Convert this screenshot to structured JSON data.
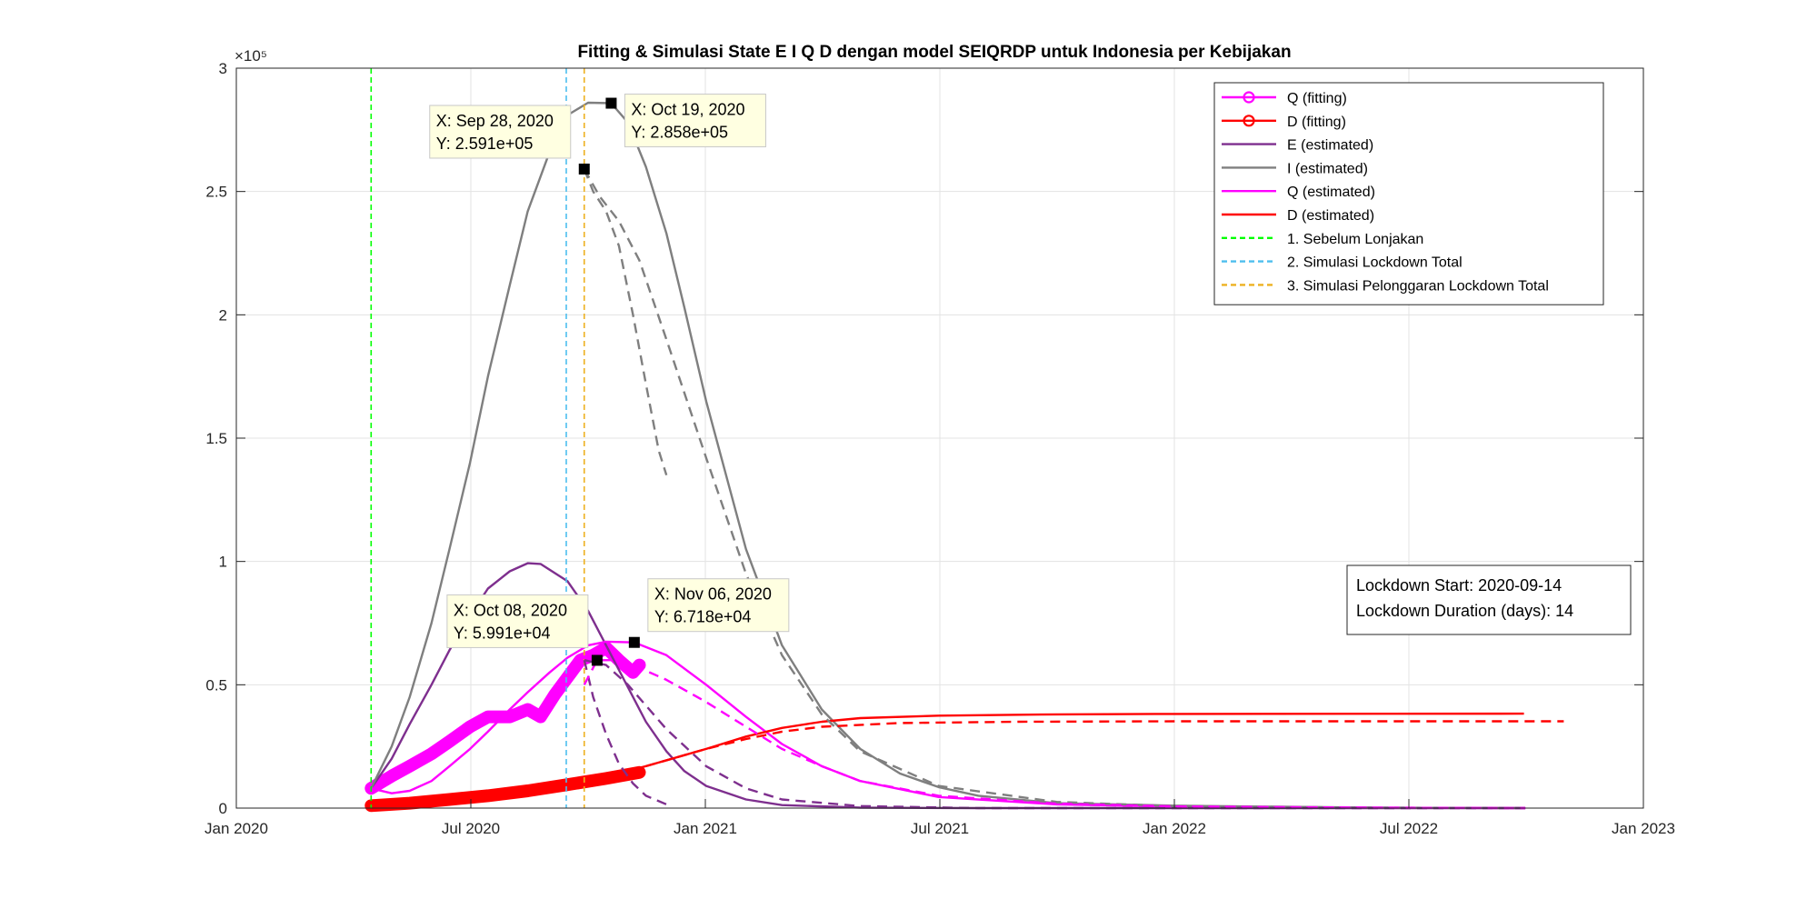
{
  "chart_data": {
    "type": "line",
    "title": "Fitting & Simulasi State  E I Q D dengan model SEIQRDP untuk Indonesia per Kebijakan",
    "y_exponent": "×10⁵",
    "x_ticks": [
      "Jan 2020",
      "Jul 2020",
      "Jan 2021",
      "Jul 2021",
      "Jan 2022",
      "Jul 2022",
      "Jan 2023"
    ],
    "x_range": [
      "2020-01-01",
      "2023-01-01"
    ],
    "y_ticks": [
      "0",
      "0.5",
      "1",
      "1.5",
      "2",
      "2.5",
      "3"
    ],
    "y_range": [
      0,
      3
    ],
    "grid": true,
    "legend_position": "top-right",
    "series": [
      {
        "name": "Q (fitting)",
        "color": "#FF00FF",
        "style": "marker-o",
        "points": [
          [
            "2020-04-15",
            0.08
          ],
          [
            "2020-05-01",
            0.13
          ],
          [
            "2020-05-15",
            0.17
          ],
          [
            "2020-06-01",
            0.22
          ],
          [
            "2020-06-15",
            0.27
          ],
          [
            "2020-07-01",
            0.33
          ],
          [
            "2020-07-15",
            0.37
          ],
          [
            "2020-08-01",
            0.37
          ],
          [
            "2020-08-15",
            0.4
          ],
          [
            "2020-08-25",
            0.37
          ],
          [
            "2020-09-05",
            0.46
          ],
          [
            "2020-09-15",
            0.53
          ],
          [
            "2020-09-25",
            0.6
          ],
          [
            "2020-10-05",
            0.62
          ],
          [
            "2020-10-15",
            0.65
          ],
          [
            "2020-10-25",
            0.6
          ],
          [
            "2020-11-05",
            0.55
          ],
          [
            "2020-11-10",
            0.58
          ]
        ]
      },
      {
        "name": "D (fitting)",
        "color": "#FF0000",
        "style": "marker-o",
        "points": [
          [
            "2020-04-15",
            0.01
          ],
          [
            "2020-05-15",
            0.02
          ],
          [
            "2020-06-15",
            0.035
          ],
          [
            "2020-07-15",
            0.05
          ],
          [
            "2020-08-15",
            0.07
          ],
          [
            "2020-09-15",
            0.095
          ],
          [
            "2020-10-15",
            0.12
          ],
          [
            "2020-11-10",
            0.145
          ]
        ]
      },
      {
        "name": "E (estimated)",
        "color": "#7E2F8E",
        "style": "solid",
        "points": [
          [
            "2020-04-15",
            0.08
          ],
          [
            "2020-05-01",
            0.2
          ],
          [
            "2020-05-15",
            0.34
          ],
          [
            "2020-06-01",
            0.5
          ],
          [
            "2020-06-15",
            0.64
          ],
          [
            "2020-07-01",
            0.78
          ],
          [
            "2020-07-15",
            0.89
          ],
          [
            "2020-08-01",
            0.96
          ],
          [
            "2020-08-15",
            0.993
          ],
          [
            "2020-08-25",
            0.99
          ],
          [
            "2020-09-15",
            0.92
          ],
          [
            "2020-10-01",
            0.8
          ],
          [
            "2020-10-15",
            0.66
          ],
          [
            "2020-11-01",
            0.49
          ],
          [
            "2020-11-15",
            0.35
          ],
          [
            "2020-12-01",
            0.23
          ],
          [
            "2020-12-15",
            0.15
          ],
          [
            "2021-01-01",
            0.09
          ],
          [
            "2021-02-01",
            0.035
          ],
          [
            "2021-03-01",
            0.012
          ],
          [
            "2021-05-01",
            0.002
          ],
          [
            "2021-08-01",
            0.0
          ],
          [
            "2022-10-01",
            0.0
          ]
        ]
      },
      {
        "name": "I (estimated)",
        "color": "#7F7F7F",
        "style": "solid",
        "points": [
          [
            "2020-04-15",
            0.08
          ],
          [
            "2020-05-01",
            0.25
          ],
          [
            "2020-05-15",
            0.45
          ],
          [
            "2020-06-01",
            0.75
          ],
          [
            "2020-06-15",
            1.05
          ],
          [
            "2020-07-01",
            1.4
          ],
          [
            "2020-07-15",
            1.75
          ],
          [
            "2020-08-01",
            2.12
          ],
          [
            "2020-08-15",
            2.42
          ],
          [
            "2020-09-01",
            2.66
          ],
          [
            "2020-09-15",
            2.81
          ],
          [
            "2020-10-01",
            2.86
          ],
          [
            "2020-10-19",
            2.858
          ],
          [
            "2020-11-01",
            2.78
          ],
          [
            "2020-11-15",
            2.6
          ],
          [
            "2020-12-01",
            2.33
          ],
          [
            "2020-12-15",
            2.03
          ],
          [
            "2021-01-01",
            1.65
          ],
          [
            "2021-02-01",
            1.05
          ],
          [
            "2021-03-01",
            0.66
          ],
          [
            "2021-04-01",
            0.4
          ],
          [
            "2021-05-01",
            0.24
          ],
          [
            "2021-06-01",
            0.14
          ],
          [
            "2021-07-01",
            0.085
          ],
          [
            "2021-08-01",
            0.05
          ],
          [
            "2021-10-01",
            0.02
          ],
          [
            "2022-01-01",
            0.01
          ],
          [
            "2022-06-01",
            0.002
          ],
          [
            "2022-10-01",
            0.0
          ]
        ]
      },
      {
        "name": "Q (estimated)",
        "color": "#FF00FF",
        "style": "solid",
        "points": [
          [
            "2020-04-15",
            0.08
          ],
          [
            "2020-05-01",
            0.06
          ],
          [
            "2020-05-15",
            0.07
          ],
          [
            "2020-06-01",
            0.11
          ],
          [
            "2020-06-15",
            0.17
          ],
          [
            "2020-07-01",
            0.24
          ],
          [
            "2020-07-15",
            0.31
          ],
          [
            "2020-08-01",
            0.4
          ],
          [
            "2020-08-15",
            0.47
          ],
          [
            "2020-09-01",
            0.55
          ],
          [
            "2020-09-15",
            0.61
          ],
          [
            "2020-10-01",
            0.66
          ],
          [
            "2020-10-15",
            0.675
          ],
          [
            "2020-11-06",
            0.6718
          ],
          [
            "2020-12-01",
            0.62
          ],
          [
            "2021-01-01",
            0.5
          ],
          [
            "2021-02-01",
            0.37
          ],
          [
            "2021-03-01",
            0.26
          ],
          [
            "2021-04-01",
            0.17
          ],
          [
            "2021-05-01",
            0.11
          ],
          [
            "2021-07-01",
            0.045
          ],
          [
            "2021-10-01",
            0.015
          ],
          [
            "2022-01-01",
            0.006
          ],
          [
            "2022-06-01",
            0.002
          ],
          [
            "2022-10-01",
            0.0
          ]
        ]
      },
      {
        "name": "D (estimated)",
        "color": "#FF0000",
        "style": "solid",
        "points": [
          [
            "2020-04-15",
            0.01
          ],
          [
            "2020-06-01",
            0.025
          ],
          [
            "2020-08-01",
            0.06
          ],
          [
            "2020-10-01",
            0.11
          ],
          [
            "2020-11-15",
            0.17
          ],
          [
            "2021-01-01",
            0.24
          ],
          [
            "2021-02-01",
            0.29
          ],
          [
            "2021-03-01",
            0.325
          ],
          [
            "2021-04-01",
            0.35
          ],
          [
            "2021-05-01",
            0.365
          ],
          [
            "2021-07-01",
            0.375
          ],
          [
            "2021-10-01",
            0.38
          ],
          [
            "2022-01-01",
            0.382
          ],
          [
            "2022-09-30",
            0.383
          ]
        ]
      },
      {
        "name": "1. Sebelum Lonjakan",
        "color": "#00FF00",
        "style": "vline-dashed",
        "x": "2020-04-15"
      },
      {
        "name": "2. Simulasi Lockdown Total",
        "color": "#4DBEEE",
        "style": "vline-dashed",
        "x": "2020-09-14"
      },
      {
        "name": "3. Simulasi Pelonggaran Lockdown Total",
        "color": "#EDB120",
        "style": "vline-dashed",
        "x": "2020-09-28"
      },
      {
        "color": "#7F7F7F",
        "style": "dashed",
        "points": [
          [
            "2020-09-28",
            2.591
          ],
          [
            "2020-10-05",
            2.5
          ],
          [
            "2020-10-15",
            2.42
          ],
          [
            "2020-10-25",
            2.28
          ],
          [
            "2020-11-05",
            2.0
          ],
          [
            "2020-11-15",
            1.72
          ],
          [
            "2020-11-25",
            1.45
          ],
          [
            "2020-12-01",
            1.35
          ]
        ]
      },
      {
        "color": "#7F7F7F",
        "style": "dashed",
        "points": [
          [
            "2020-09-28",
            2.591
          ],
          [
            "2020-10-10",
            2.48
          ],
          [
            "2020-10-25",
            2.38
          ],
          [
            "2020-11-10",
            2.22
          ],
          [
            "2020-12-01",
            1.9
          ],
          [
            "2021-01-01",
            1.42
          ],
          [
            "2021-02-01",
            0.95
          ],
          [
            "2021-03-01",
            0.62
          ],
          [
            "2021-04-01",
            0.38
          ],
          [
            "2021-05-01",
            0.23
          ],
          [
            "2021-07-01",
            0.09
          ],
          [
            "2021-10-01",
            0.025
          ],
          [
            "2022-01-01",
            0.008
          ],
          [
            "2022-06-01",
            0.002
          ],
          [
            "2022-10-01",
            0.0
          ]
        ]
      },
      {
        "color": "#7E2F8E",
        "style": "dashed",
        "points": [
          [
            "2020-09-28",
            0.6
          ],
          [
            "2020-10-05",
            0.45
          ],
          [
            "2020-10-15",
            0.3
          ],
          [
            "2020-10-25",
            0.18
          ],
          [
            "2020-11-05",
            0.1
          ],
          [
            "2020-11-15",
            0.05
          ],
          [
            "2020-12-01",
            0.015
          ]
        ]
      },
      {
        "color": "#7E2F8E",
        "style": "dashed",
        "points": [
          [
            "2020-09-28",
            0.6
          ],
          [
            "2020-10-15",
            0.58
          ],
          [
            "2020-11-01",
            0.5
          ],
          [
            "2020-12-01",
            0.32
          ],
          [
            "2021-01-01",
            0.17
          ],
          [
            "2021-02-01",
            0.08
          ],
          [
            "2021-03-01",
            0.035
          ],
          [
            "2021-05-01",
            0.008
          ],
          [
            "2021-08-01",
            0.0
          ],
          [
            "2022-10-01",
            0.0
          ]
        ]
      },
      {
        "color": "#FF00FF",
        "style": "dashed",
        "points": [
          [
            "2020-09-28",
            0.5
          ],
          [
            "2020-10-08",
            0.5991
          ],
          [
            "2020-10-20",
            0.6
          ],
          [
            "2020-11-05",
            0.58
          ],
          [
            "2020-12-01",
            0.52
          ],
          [
            "2021-01-01",
            0.43
          ],
          [
            "2021-02-01",
            0.33
          ],
          [
            "2021-03-01",
            0.24
          ],
          [
            "2021-04-01",
            0.17
          ],
          [
            "2021-05-01",
            0.11
          ],
          [
            "2021-07-01",
            0.05
          ],
          [
            "2021-10-01",
            0.018
          ],
          [
            "2022-01-01",
            0.007
          ],
          [
            "2022-06-01",
            0.002
          ],
          [
            "2022-10-01",
            0.0
          ]
        ]
      },
      {
        "color": "#FF0000",
        "style": "dashed",
        "points": [
          [
            "2020-11-15",
            0.17
          ],
          [
            "2021-01-01",
            0.24
          ],
          [
            "2021-02-01",
            0.28
          ],
          [
            "2021-03-01",
            0.31
          ],
          [
            "2021-04-01",
            0.33
          ],
          [
            "2021-06-01",
            0.345
          ],
          [
            "2021-09-01",
            0.35
          ],
          [
            "2022-01-01",
            0.352
          ],
          [
            "2022-10-31",
            0.352
          ]
        ]
      }
    ],
    "datatips": [
      {
        "x": "2020-09-28",
        "y": 2.591,
        "label_x": "X: Sep 28, 2020",
        "label_y": "Y: 2.591e+05"
      },
      {
        "x": "2020-10-19",
        "y": 2.858,
        "label_x": "X: Oct 19, 2020",
        "label_y": "Y: 2.858e+05"
      },
      {
        "x": "2020-10-08",
        "y": 0.5991,
        "label_x": "X: Oct 08, 2020",
        "label_y": "Y: 5.991e+04"
      },
      {
        "x": "2020-11-06",
        "y": 0.6718,
        "label_x": "X: Nov 06, 2020",
        "label_y": "Y: 6.718e+04"
      }
    ],
    "annotation": [
      "Lockdown Start: 2020-09-14",
      "Lockdown Duration (days): 14"
    ]
  }
}
